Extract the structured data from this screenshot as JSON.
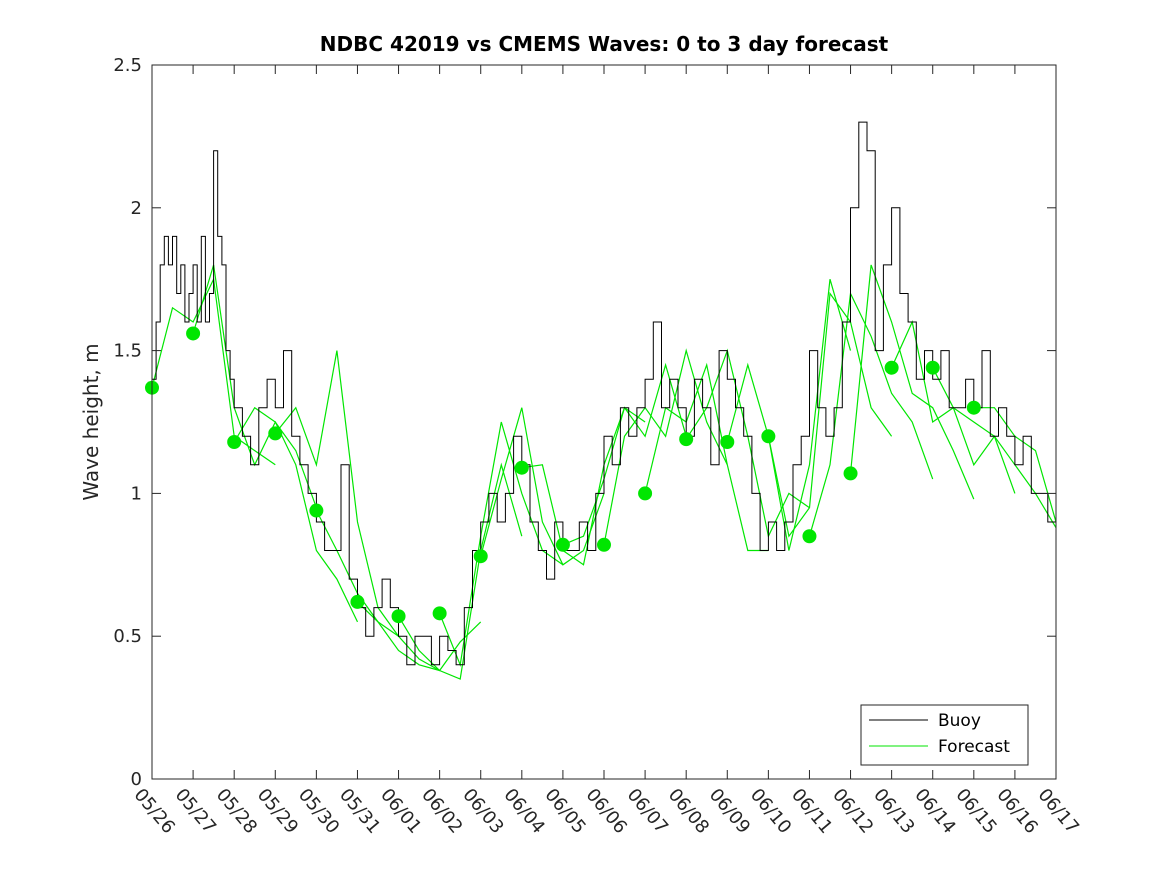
{
  "chart_data": {
    "type": "line",
    "title": "NDBC 42019 vs CMEMS Waves: 0 to 3 day forecast",
    "xlabel": "",
    "ylabel": "Wave height, m",
    "xlim": [
      "2024-05-26",
      "2024-06-17"
    ],
    "ylim": [
      0,
      2.5
    ],
    "yticks": [
      "0",
      "0.5",
      "1",
      "1.5",
      "2",
      "2.5"
    ],
    "xtick_labels": [
      "05/26",
      "05/27",
      "05/28",
      "05/29",
      "05/30",
      "05/31",
      "06/01",
      "06/02",
      "06/03",
      "06/04",
      "06/05",
      "06/06",
      "06/07",
      "06/08",
      "06/09",
      "06/10",
      "06/11",
      "06/12",
      "06/13",
      "06/14",
      "06/15",
      "06/16",
      "06/17"
    ],
    "grid": false,
    "legend": {
      "position": "bottom-right",
      "entries": [
        "Buoy",
        "Forecast"
      ]
    },
    "colors": {
      "buoy": "#000000",
      "forecast": "#00e600",
      "axis": "#262626"
    },
    "series": [
      {
        "name": "Buoy",
        "x_days": [
          0,
          0.1,
          0.2,
          0.3,
          0.4,
          0.5,
          0.6,
          0.7,
          0.8,
          0.9,
          1.0,
          1.1,
          1.2,
          1.3,
          1.4,
          1.5,
          1.6,
          1.7,
          1.8,
          1.9,
          2.0,
          2.2,
          2.4,
          2.6,
          2.8,
          3.0,
          3.2,
          3.4,
          3.6,
          3.8,
          4.0,
          4.2,
          4.4,
          4.6,
          4.8,
          5.0,
          5.2,
          5.4,
          5.6,
          5.8,
          6.0,
          6.2,
          6.4,
          6.6,
          6.8,
          7.0,
          7.2,
          7.4,
          7.6,
          7.8,
          8.0,
          8.2,
          8.4,
          8.6,
          8.8,
          9.0,
          9.2,
          9.4,
          9.6,
          9.8,
          10.0,
          10.2,
          10.4,
          10.6,
          10.8,
          11.0,
          11.2,
          11.4,
          11.6,
          11.8,
          12.0,
          12.2,
          12.4,
          12.6,
          12.8,
          13.0,
          13.2,
          13.4,
          13.6,
          13.8,
          14.0,
          14.2,
          14.4,
          14.6,
          14.8,
          15.0,
          15.2,
          15.4,
          15.6,
          15.8,
          16.0,
          16.2,
          16.4,
          16.6,
          16.8,
          17.0,
          17.2,
          17.4,
          17.6,
          17.8,
          18.0,
          18.2,
          18.4,
          18.6,
          18.8,
          19.0,
          19.2,
          19.4,
          19.6,
          19.8,
          20.0,
          20.2,
          20.4,
          20.6,
          20.8,
          21.0,
          21.2,
          21.4,
          21.6,
          21.8,
          22.0
        ],
        "values": [
          1.4,
          1.6,
          1.8,
          1.9,
          1.8,
          1.9,
          1.7,
          1.8,
          1.6,
          1.7,
          1.8,
          1.6,
          1.9,
          1.6,
          1.7,
          2.2,
          1.9,
          1.8,
          1.5,
          1.4,
          1.3,
          1.2,
          1.1,
          1.3,
          1.4,
          1.3,
          1.5,
          1.2,
          1.1,
          1.0,
          0.9,
          0.8,
          0.8,
          1.1,
          0.7,
          0.6,
          0.5,
          0.6,
          0.7,
          0.6,
          0.5,
          0.4,
          0.5,
          0.5,
          0.4,
          0.5,
          0.45,
          0.4,
          0.6,
          0.8,
          0.9,
          1.0,
          0.9,
          1.0,
          1.2,
          1.1,
          0.9,
          0.8,
          0.7,
          0.9,
          0.8,
          0.8,
          0.9,
          0.8,
          1.0,
          1.2,
          1.1,
          1.3,
          1.2,
          1.3,
          1.4,
          1.6,
          1.3,
          1.4,
          1.3,
          1.2,
          1.4,
          1.3,
          1.1,
          1.5,
          1.4,
          1.3,
          1.2,
          1.0,
          0.8,
          0.9,
          0.8,
          0.9,
          1.1,
          1.2,
          1.5,
          1.3,
          1.2,
          1.3,
          1.6,
          2.0,
          2.3,
          2.2,
          1.5,
          1.8,
          2.0,
          1.7,
          1.6,
          1.4,
          1.5,
          1.4,
          1.5,
          1.3,
          1.3,
          1.4,
          1.3,
          1.5,
          1.2,
          1.3,
          1.2,
          1.1,
          1.2,
          1.0,
          1.0,
          0.9,
          0.9
        ]
      },
      {
        "name": "Forecast",
        "runs": [
          {
            "x_days": [
              0,
              0.5,
              1,
              1.5,
              2,
              2.5,
              3
            ],
            "values": [
              1.37,
              1.65,
              1.6,
              1.75,
              1.2,
              1.15,
              1.1
            ]
          },
          {
            "x_days": [
              1,
              1.5,
              2,
              2.5,
              3,
              3.5,
              4
            ],
            "values": [
              1.56,
              1.8,
              1.3,
              1.1,
              1.25,
              1.15,
              0.95
            ]
          },
          {
            "x_days": [
              2,
              2.5,
              3,
              3.5,
              4,
              4.5,
              5
            ],
            "values": [
              1.18,
              1.3,
              1.25,
              1.1,
              0.8,
              0.7,
              0.55
            ]
          },
          {
            "x_days": [
              3,
              3.5,
              4,
              4.5,
              5,
              5.5,
              6
            ],
            "values": [
              1.21,
              1.3,
              1.1,
              1.5,
              0.9,
              0.6,
              0.5
            ]
          },
          {
            "x_days": [
              4,
              4.5,
              5,
              5.5,
              6,
              6.5,
              7
            ],
            "values": [
              0.94,
              0.8,
              0.65,
              0.55,
              0.5,
              0.42,
              0.38
            ]
          },
          {
            "x_days": [
              5,
              5.5,
              6,
              6.5,
              7,
              7.5,
              8
            ],
            "values": [
              0.62,
              0.55,
              0.45,
              0.4,
              0.38,
              0.48,
              0.55
            ]
          },
          {
            "x_days": [
              6,
              6.5,
              7,
              7.5,
              8,
              8.5,
              9
            ],
            "values": [
              0.57,
              0.45,
              0.38,
              0.35,
              0.8,
              1.1,
              0.85
            ]
          },
          {
            "x_days": [
              7,
              7.5,
              8,
              8.5,
              9,
              9.5,
              10
            ],
            "values": [
              0.58,
              0.4,
              0.85,
              1.25,
              1.0,
              0.8,
              0.75
            ]
          },
          {
            "x_days": [
              8,
              8.5,
              9,
              9.5,
              10,
              10.5,
              11
            ],
            "values": [
              0.78,
              1.05,
              1.3,
              0.9,
              0.75,
              0.8,
              1.0
            ]
          },
          {
            "x_days": [
              9,
              9.5,
              10,
              10.5,
              11,
              11.5,
              12
            ],
            "values": [
              1.09,
              1.1,
              0.8,
              0.75,
              1.1,
              1.3,
              1.25
            ]
          },
          {
            "x_days": [
              10,
              10.5,
              11,
              11.5,
              12,
              12.5,
              13
            ],
            "values": [
              0.82,
              0.85,
              1.05,
              1.3,
              1.2,
              1.45,
              1.2
            ]
          },
          {
            "x_days": [
              11,
              11.5,
              12,
              12.5,
              13,
              13.5,
              14
            ],
            "values": [
              0.82,
              1.2,
              1.3,
              1.2,
              1.5,
              1.25,
              1.1
            ]
          },
          {
            "x_days": [
              12,
              12.5,
              13,
              13.5,
              14,
              14.5,
              15
            ],
            "values": [
              1.0,
              1.3,
              1.25,
              1.45,
              1.1,
              0.8,
              0.8
            ]
          },
          {
            "x_days": [
              13,
              13.5,
              14,
              14.5,
              15,
              15.5,
              16
            ],
            "values": [
              1.19,
              1.3,
              1.5,
              1.2,
              0.85,
              1.0,
              0.95
            ]
          },
          {
            "x_days": [
              14,
              14.5,
              15,
              15.5,
              16,
              16.5,
              17
            ],
            "values": [
              1.18,
              1.45,
              1.2,
              0.8,
              1.1,
              1.75,
              1.5
            ]
          },
          {
            "x_days": [
              15,
              15.5,
              16,
              16.5,
              17,
              17.5,
              18
            ],
            "values": [
              1.2,
              0.85,
              0.95,
              1.7,
              1.6,
              1.3,
              1.2
            ]
          },
          {
            "x_days": [
              16,
              16.5,
              17,
              17.5,
              18,
              18.5,
              19
            ],
            "values": [
              0.85,
              1.1,
              1.7,
              1.55,
              1.35,
              1.25,
              1.05
            ]
          },
          {
            "x_days": [
              17,
              17.5,
              18,
              18.5,
              19,
              19.5,
              20
            ],
            "values": [
              1.07,
              1.8,
              1.6,
              1.35,
              1.3,
              1.15,
              0.98
            ]
          },
          {
            "x_days": [
              18,
              18.5,
              19,
              19.5,
              20,
              20.5,
              21
            ],
            "values": [
              1.44,
              1.6,
              1.25,
              1.3,
              1.1,
              1.2,
              1.0
            ]
          },
          {
            "x_days": [
              19,
              19.5,
              20,
              20.5,
              21,
              21.5,
              22
            ],
            "values": [
              1.44,
              1.3,
              1.25,
              1.2,
              1.1,
              1.0,
              0.88
            ]
          },
          {
            "x_days": [
              20,
              20.5,
              21,
              21.5,
              22
            ],
            "values": [
              1.3,
              1.3,
              1.2,
              1.15,
              0.9
            ]
          }
        ]
      }
    ]
  }
}
